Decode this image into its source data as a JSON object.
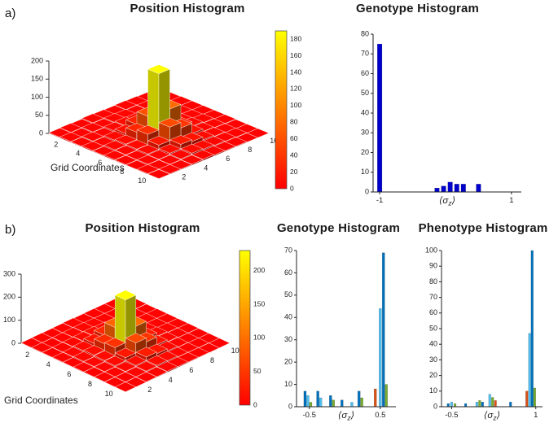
{
  "panel_labels": {
    "a": "a)",
    "b": "b)"
  },
  "colors": {
    "background": "#ffffff",
    "colormap_low": "#ff0000",
    "colormap_mid": "#ff8000",
    "colormap_high": "#ffff00",
    "bar_navy": "#0000CD",
    "series_blue": "#0072BD",
    "series_teal": "#4DBEEE",
    "series_green": "#77AC30",
    "series_orange": "#D95319"
  },
  "chart_data": [
    {
      "id": "position_a",
      "type": "bar3d",
      "title": "Position Histogram",
      "xlabel": "Grid Coordinates",
      "grid_tick_labels": [
        2,
        4,
        6,
        8,
        10
      ],
      "zticks": [
        0,
        50,
        100,
        150,
        200
      ],
      "zlim": [
        0,
        200
      ],
      "colormap": "autumn",
      "colorbar_ticks": [
        0,
        20,
        40,
        60,
        80,
        100,
        120,
        140,
        160,
        180
      ],
      "colorbar_max": 190,
      "values": [
        [
          2,
          3,
          2,
          4,
          3,
          2,
          3,
          2,
          1,
          2
        ],
        [
          3,
          2,
          4,
          3,
          5,
          4,
          2,
          3,
          2,
          1
        ],
        [
          2,
          4,
          3,
          6,
          8,
          7,
          4,
          3,
          2,
          2
        ],
        [
          3,
          3,
          6,
          12,
          25,
          18,
          8,
          4,
          3,
          2
        ],
        [
          2,
          5,
          8,
          28,
          60,
          45,
          15,
          6,
          3,
          2
        ],
        [
          3,
          4,
          7,
          35,
          190,
          80,
          20,
          7,
          4,
          2
        ],
        [
          2,
          3,
          6,
          18,
          55,
          40,
          12,
          5,
          3,
          2
        ],
        [
          1,
          3,
          4,
          8,
          20,
          15,
          7,
          4,
          2,
          1
        ],
        [
          2,
          2,
          3,
          5,
          8,
          6,
          4,
          3,
          2,
          1
        ],
        [
          1,
          2,
          2,
          3,
          4,
          3,
          2,
          2,
          1,
          1
        ]
      ]
    },
    {
      "id": "genotype_a",
      "type": "bar",
      "title": "Genotype Histogram",
      "xlabel": "⟨σ_z⟩",
      "xlim": [
        -1.1,
        1.15
      ],
      "ylim": [
        0,
        80
      ],
      "yticks": [
        0,
        10,
        20,
        30,
        40,
        50,
        60,
        70,
        80
      ],
      "xticks": [
        -1,
        1
      ],
      "bar_width": 0.07,
      "bars": [
        {
          "x": -1.0,
          "h": 75,
          "color": "#0000CD"
        },
        {
          "x": -0.13,
          "h": 2,
          "color": "#0000CD"
        },
        {
          "x": -0.03,
          "h": 3,
          "color": "#0000CD"
        },
        {
          "x": 0.07,
          "h": 5,
          "color": "#0000CD"
        },
        {
          "x": 0.17,
          "h": 4,
          "color": "#0000CD"
        },
        {
          "x": 0.27,
          "h": 4,
          "color": "#0000CD"
        },
        {
          "x": 0.5,
          "h": 4,
          "color": "#0000CD"
        }
      ]
    },
    {
      "id": "position_b",
      "type": "bar3d",
      "title": "Position Histogram",
      "xlabel": "Grid Coordinates",
      "grid_tick_labels": [
        2,
        4,
        6,
        8,
        10
      ],
      "zticks": [
        0,
        100,
        200,
        300
      ],
      "zlim": [
        0,
        300
      ],
      "colormap": "autumn",
      "colorbar_ticks": [
        0,
        50,
        100,
        150,
        200
      ],
      "colorbar_max": 230,
      "values": [
        [
          2,
          3,
          2,
          3,
          4,
          2,
          3,
          2,
          2,
          1
        ],
        [
          3,
          2,
          4,
          5,
          6,
          4,
          3,
          2,
          1,
          2
        ],
        [
          2,
          4,
          6,
          8,
          10,
          8,
          5,
          3,
          2,
          1
        ],
        [
          3,
          5,
          9,
          20,
          35,
          22,
          10,
          4,
          3,
          2
        ],
        [
          2,
          6,
          12,
          40,
          90,
          55,
          18,
          6,
          3,
          2
        ],
        [
          3,
          5,
          10,
          45,
          230,
          95,
          25,
          8,
          4,
          2
        ],
        [
          2,
          4,
          8,
          22,
          65,
          48,
          15,
          6,
          3,
          2
        ],
        [
          2,
          3,
          5,
          10,
          25,
          18,
          8,
          4,
          2,
          1
        ],
        [
          1,
          2,
          3,
          6,
          10,
          8,
          4,
          3,
          2,
          1
        ],
        [
          1,
          1,
          2,
          3,
          5,
          4,
          3,
          2,
          1,
          1
        ]
      ]
    },
    {
      "id": "genotype_b",
      "type": "bar",
      "title": "Genotype Histogram",
      "xlabel": "⟨σ_z⟩",
      "xlim": [
        -0.68,
        0.72
      ],
      "ylim": [
        0,
        70
      ],
      "yticks": [
        0,
        10,
        20,
        30,
        40,
        50,
        60,
        70
      ],
      "xticks": [
        -0.5,
        0.5
      ],
      "bar_width": 0.035,
      "bars": [
        {
          "x": -0.56,
          "h": 7,
          "color": "#0072BD"
        },
        {
          "x": -0.52,
          "h": 5,
          "color": "#4DBEEE"
        },
        {
          "x": -0.48,
          "h": 2,
          "color": "#77AC30"
        },
        {
          "x": -0.38,
          "h": 7,
          "color": "#0072BD"
        },
        {
          "x": -0.34,
          "h": 4,
          "color": "#4DBEEE"
        },
        {
          "x": -0.2,
          "h": 5,
          "color": "#0072BD"
        },
        {
          "x": -0.16,
          "h": 3,
          "color": "#77AC30"
        },
        {
          "x": -0.04,
          "h": 3,
          "color": "#0072BD"
        },
        {
          "x": 0.1,
          "h": 2,
          "color": "#4DBEEE"
        },
        {
          "x": 0.2,
          "h": 7,
          "color": "#0072BD"
        },
        {
          "x": 0.24,
          "h": 4,
          "color": "#77AC30"
        },
        {
          "x": 0.43,
          "h": 8,
          "color": "#D95319"
        },
        {
          "x": 0.5,
          "h": 44,
          "color": "#4DBEEE"
        },
        {
          "x": 0.545,
          "h": 69,
          "color": "#0072BD"
        },
        {
          "x": 0.585,
          "h": 10,
          "color": "#77AC30"
        }
      ]
    },
    {
      "id": "phenotype_b",
      "type": "bar",
      "title": "Phenotype Histogram",
      "xlabel": "⟨σ_z⟩",
      "xlim": [
        -0.68,
        1.12
      ],
      "ylim": [
        0,
        100
      ],
      "yticks": [
        0,
        10,
        20,
        30,
        40,
        50,
        60,
        70,
        80,
        90,
        100
      ],
      "xticks": [
        -0.5,
        1
      ],
      "bar_width": 0.04,
      "bars": [
        {
          "x": -0.56,
          "h": 2,
          "color": "#0072BD"
        },
        {
          "x": -0.5,
          "h": 3,
          "color": "#4DBEEE"
        },
        {
          "x": -0.44,
          "h": 2,
          "color": "#77AC30"
        },
        {
          "x": -0.25,
          "h": 2,
          "color": "#0072BD"
        },
        {
          "x": -0.05,
          "h": 3,
          "color": "#4DBEEE"
        },
        {
          "x": 0.0,
          "h": 4,
          "color": "#77AC30"
        },
        {
          "x": 0.05,
          "h": 3,
          "color": "#0072BD"
        },
        {
          "x": 0.18,
          "h": 8,
          "color": "#4DBEEE"
        },
        {
          "x": 0.23,
          "h": 6,
          "color": "#77AC30"
        },
        {
          "x": 0.28,
          "h": 4,
          "color": "#D95319"
        },
        {
          "x": 0.55,
          "h": 3,
          "color": "#0072BD"
        },
        {
          "x": 0.84,
          "h": 10,
          "color": "#D95319"
        },
        {
          "x": 0.89,
          "h": 47,
          "color": "#4DBEEE"
        },
        {
          "x": 0.935,
          "h": 100,
          "color": "#0072BD"
        },
        {
          "x": 0.98,
          "h": 12,
          "color": "#77AC30"
        }
      ]
    }
  ]
}
